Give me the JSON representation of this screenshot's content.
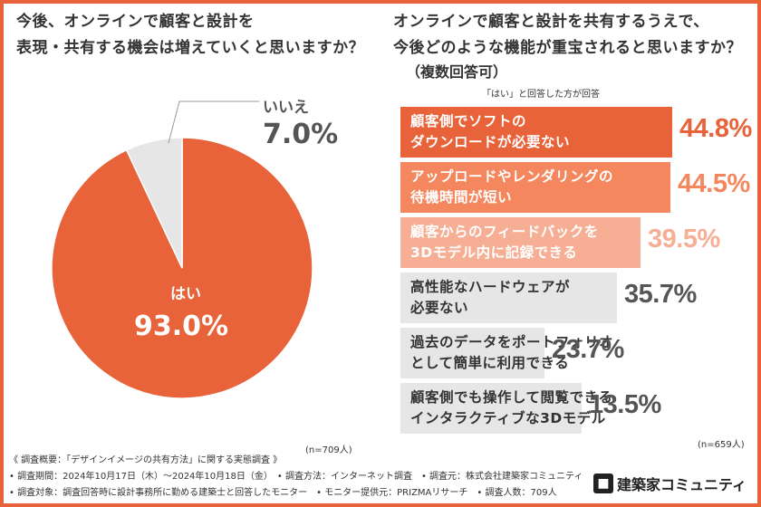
{
  "left_question": "今後、オンラインで顧客と設計を\n表現・共有する機会は増えていくと思いますか？",
  "right_question": "オンラインで顧客と設計を共有するうえで、\n今後どのような機能が重宝されると思いますか？",
  "right_note": "（複数回答可）",
  "bars_caption": "「はい」と回答した方が回答",
  "colors": {
    "primary": "#E8633A",
    "light": "#F4875E",
    "lighter": "#F6AE95",
    "gray": "#E6E6E6",
    "value_dark": "#555555"
  },
  "chart_data": [
    {
      "type": "pie",
      "slices": [
        {
          "label": "はい",
          "value": 93.0,
          "value_label": "93.0%"
        },
        {
          "label": "いいえ",
          "value": 7.0,
          "value_label": "7.0%"
        }
      ],
      "n_note": "(n=709人)"
    },
    {
      "type": "bar",
      "orientation": "horizontal",
      "categories": [
        "顧客側でソフトの\nダウンロードが必要ない",
        "アップロードやレンダリングの\n待機時間が短い",
        "顧客からのフィードバックを\n3Dモデル内に記録できる",
        "高性能なハードウェアが\n必要ない",
        "過去のデータをポートフォリオ\nとして簡単に利用できる",
        "顧客側でも操作して閲覧できる\nインタラクティブな3Dモデル"
      ],
      "values": [
        44.8,
        44.5,
        39.5,
        35.7,
        23.7,
        13.5
      ],
      "value_labels": [
        "44.8%",
        "44.5%",
        "39.5%",
        "35.7%",
        "23.7%",
        "13.5%"
      ],
      "n_note": "(n=659人)"
    }
  ],
  "footer": {
    "line1": "《 調査概要：「デザインイメージの共有方法」に関する実態調査 》",
    "line2": "• 調査期間：2024年10月17日（木）〜2024年10月18日（金）　• 調査方法：インターネット調査　• 調査元：株式会社建築家コミュニティ",
    "line3": "• 調査対象：調査回答時に設計事務所に勤める建築士と回答したモニター　• モニター提供元：PRIZMAリサーチ　• 調査人数：709人"
  },
  "brand": {
    "icon": "building-icon",
    "name": "建築家コミュニティ"
  }
}
